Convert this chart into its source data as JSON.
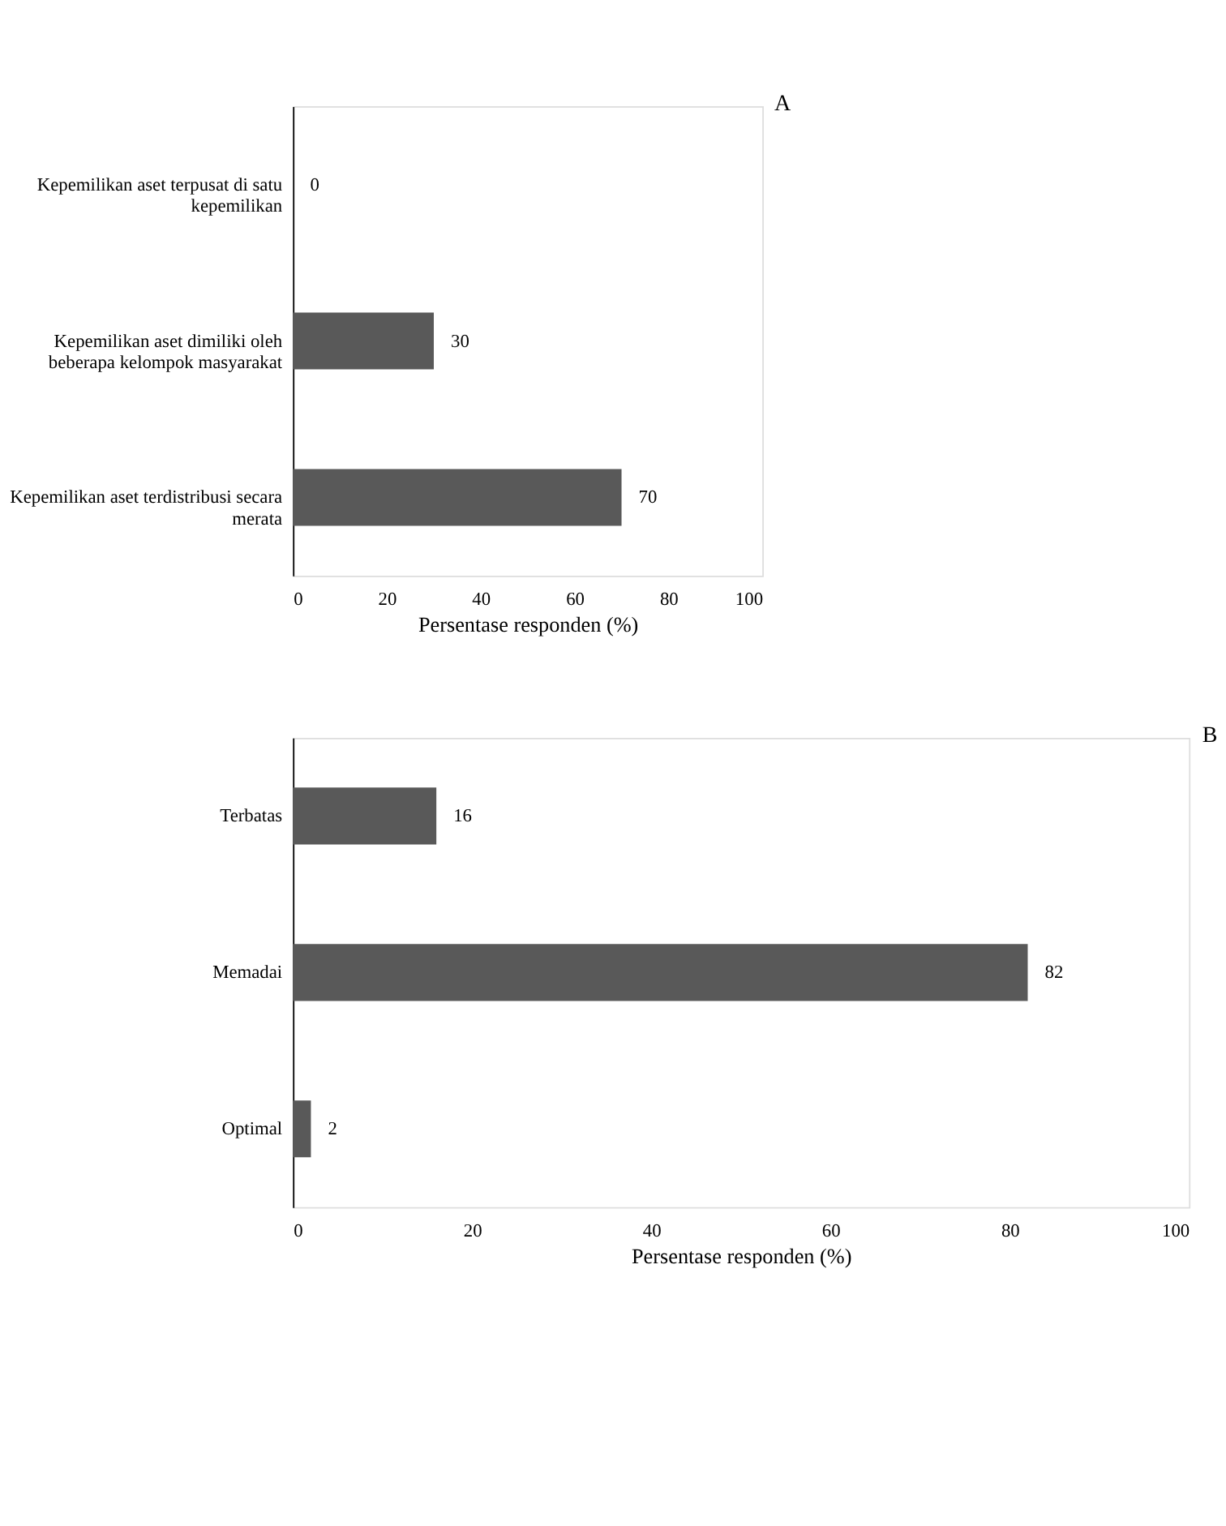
{
  "chart_data": [
    {
      "type": "bar",
      "orientation": "horizontal",
      "categories": [
        "Kepemilikan aset terpusat di satu kepemilikan",
        "Kepemilikan aset dimiliki oleh beberapa kelompok masyarakat",
        "Kepemilikan aset terdistribusi secara merata"
      ],
      "values": [
        0,
        30,
        70
      ],
      "color": "#595959",
      "data_labels": true,
      "xlim": [
        0,
        100
      ],
      "xticks": [
        0,
        20,
        40,
        60,
        80,
        100
      ],
      "xlabel": "Persentase responden (%)",
      "grid": false,
      "annotations": [
        "A"
      ]
    },
    {
      "type": "bar",
      "orientation": "horizontal",
      "categories": [
        "Terbatas",
        "Memadai",
        "Optimal"
      ],
      "values": [
        16,
        82,
        2
      ],
      "color": "#595959",
      "data_labels": true,
      "xlim": [
        0,
        100
      ],
      "xticks": [
        0,
        20,
        40,
        60,
        80,
        100
      ],
      "xlabel": "Persentase responden (%)",
      "grid": false,
      "annotations": [
        "B"
      ]
    }
  ]
}
